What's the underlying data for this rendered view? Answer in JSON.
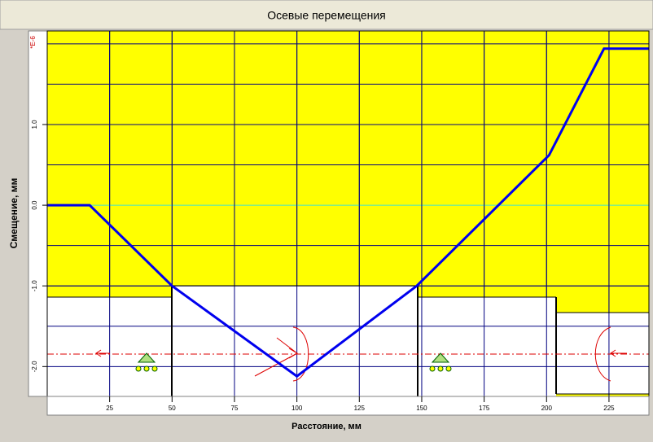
{
  "chart_data": {
    "type": "line",
    "title": "Осевые перемещения",
    "y_label": "Смещение, мм",
    "x_label": "Расстояние, мм",
    "y_scale_label": "*E-6",
    "x": [
      0,
      17,
      50,
      100,
      148,
      201,
      223,
      241
    ],
    "series": [
      {
        "color": "#0000ee",
        "values": [
          0,
          0,
          -1.0,
          -2.12,
          -1.0,
          0.62,
          1.94,
          1.94
        ]
      }
    ],
    "xlim": [
      0,
      241
    ],
    "ylim": [
      -2.37,
      2.16
    ],
    "xticks": [
      25,
      50,
      75,
      100,
      125,
      150,
      175,
      200,
      225
    ],
    "yticks": [
      {
        "value": 1,
        "label": "1.0"
      },
      {
        "value": 0,
        "label": "0.0"
      },
      {
        "value": -1,
        "label": "-1.0"
      },
      {
        "value": -2,
        "label": "-2.0"
      }
    ],
    "ygrid": [
      2,
      1.5,
      1,
      0.5,
      -0.5,
      -1,
      -1.5,
      -2
    ],
    "grid": true
  }
}
